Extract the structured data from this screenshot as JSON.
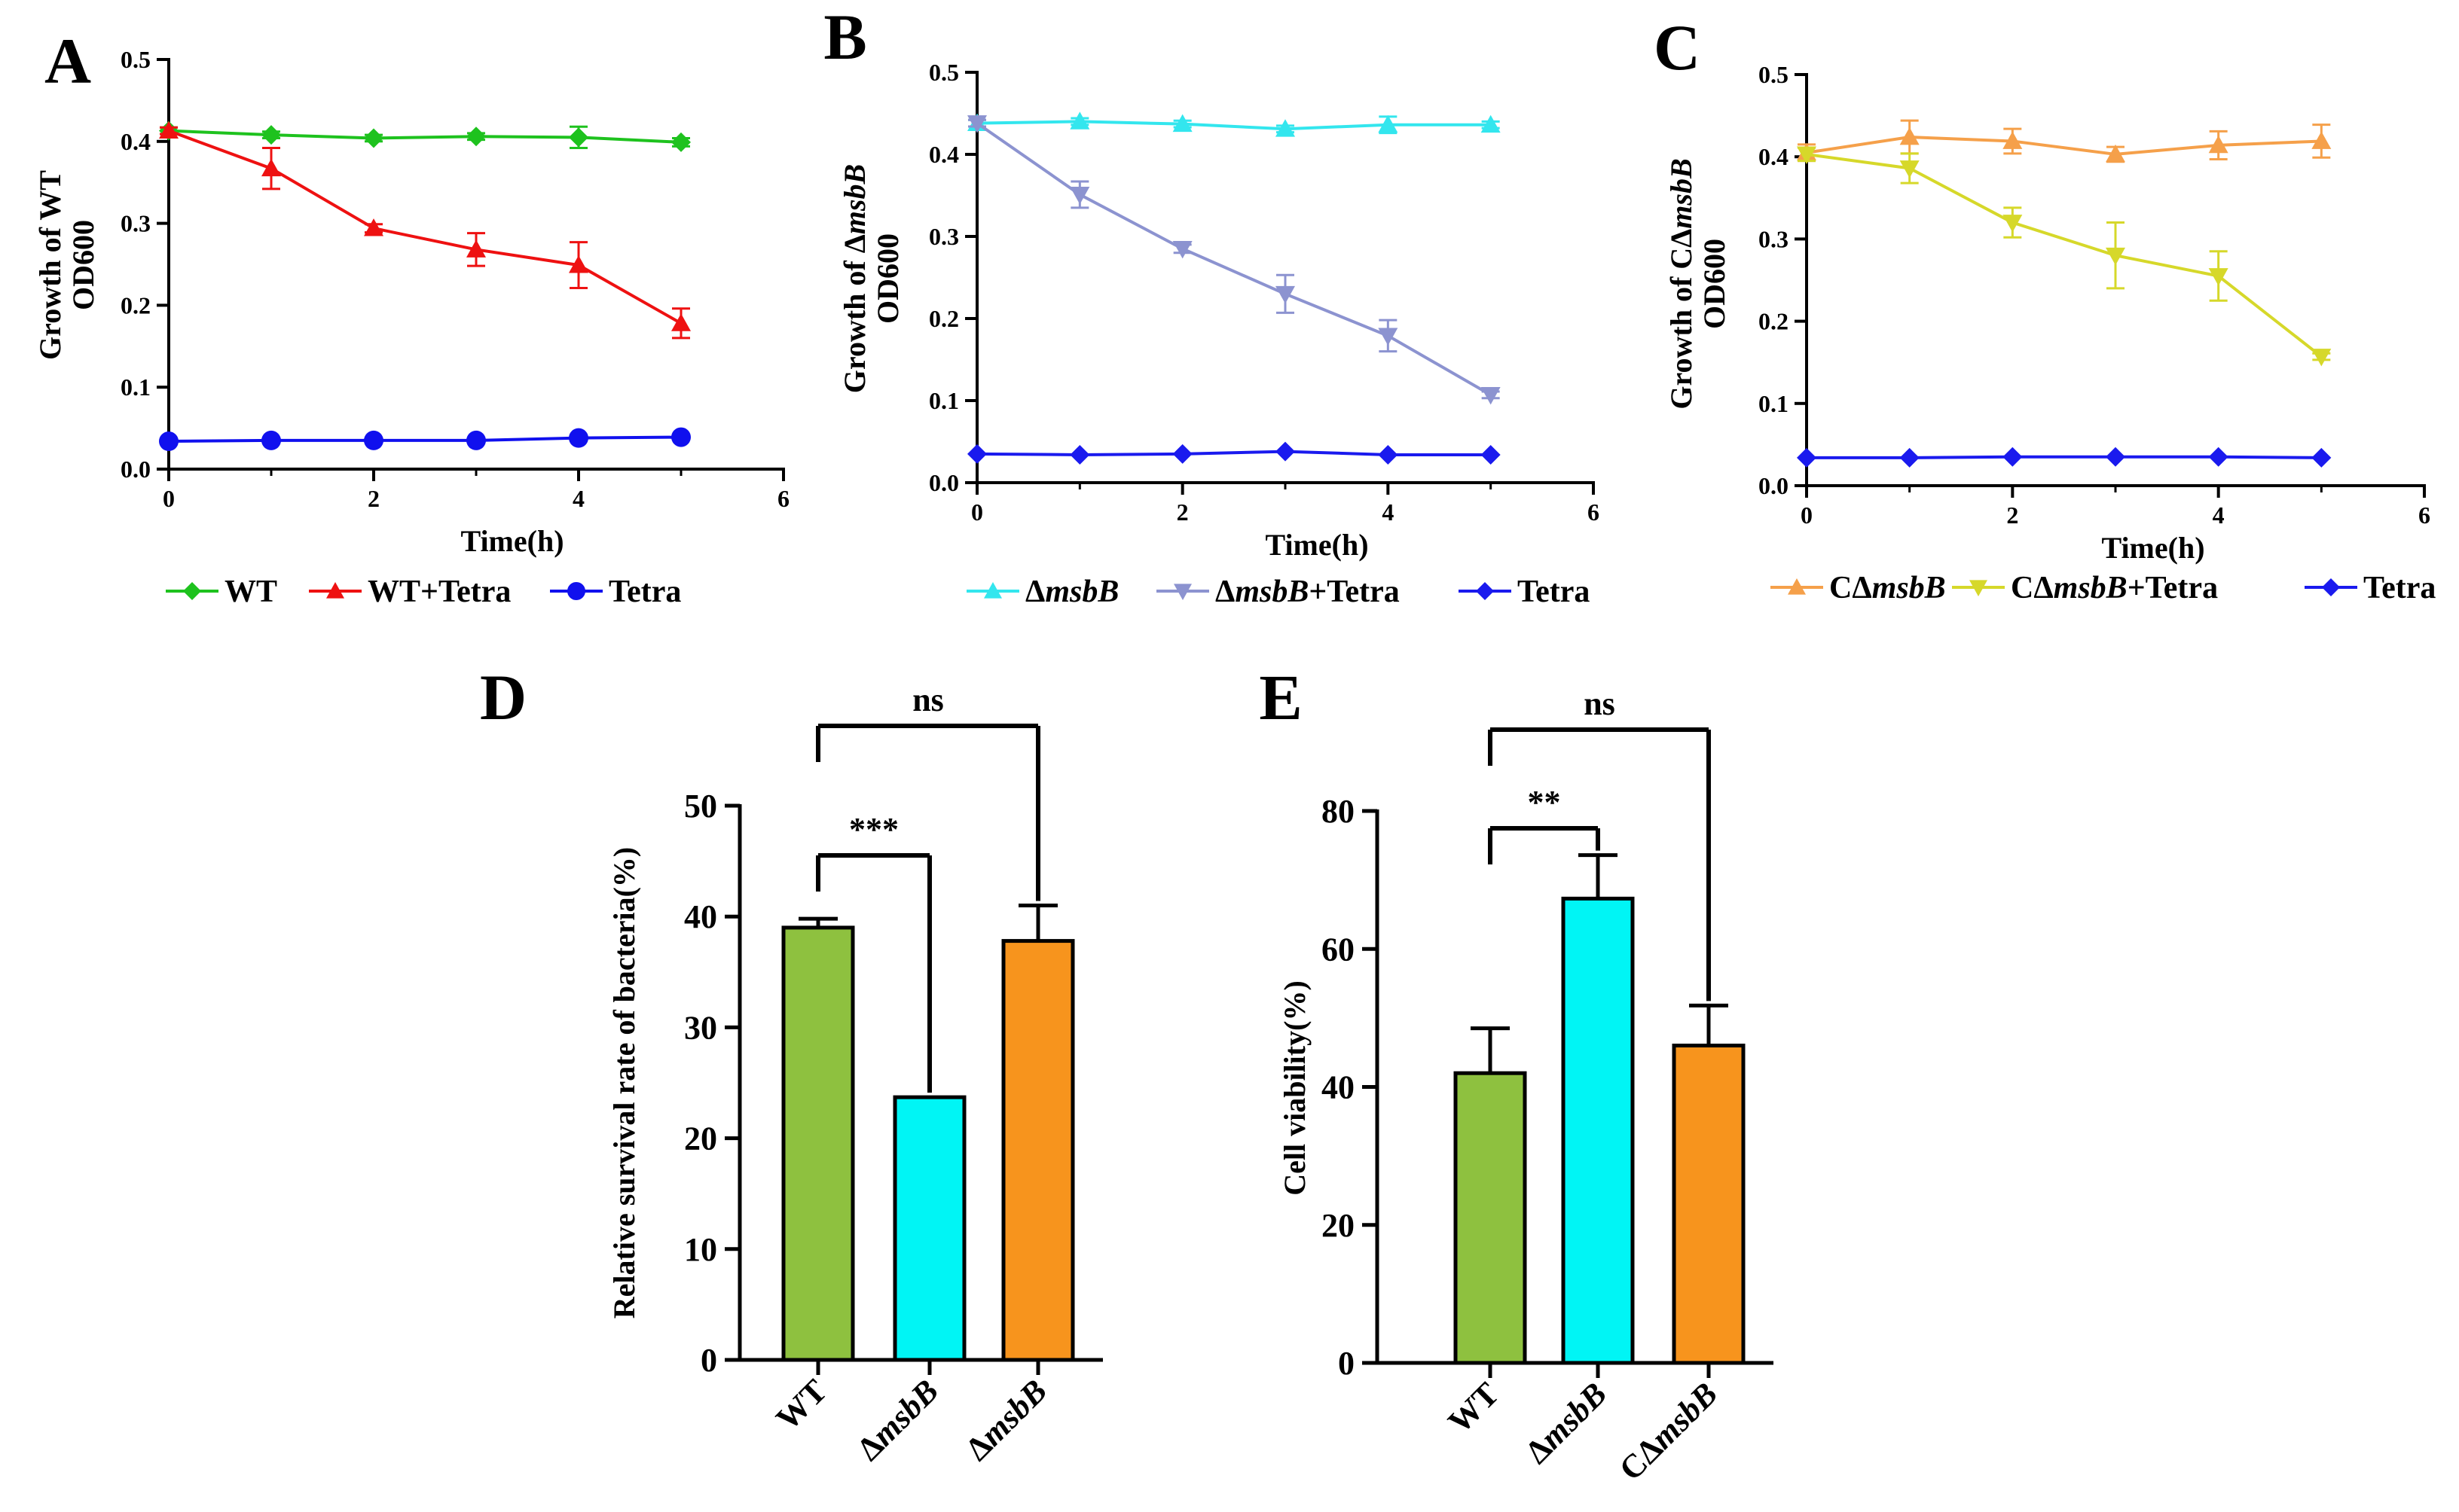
{
  "chart_data": [
    {
      "panel": "A",
      "type": "line",
      "ylabel_line1": "Growth of WT",
      "ylabel_line2": "OD600",
      "xlabel": "Time(h)",
      "xlim": [
        0,
        6
      ],
      "ylim": [
        0,
        0.5
      ],
      "xticks": [
        "0",
        "2",
        "4",
        "6"
      ],
      "yticks": [
        "0.0",
        "0.1",
        "0.2",
        "0.3",
        "0.4",
        "0.5"
      ],
      "x": [
        0,
        1,
        2,
        3,
        4,
        5
      ],
      "series": [
        {
          "name": "WT",
          "color": "#1ec21e",
          "marker": "diamond",
          "values": [
            0.413,
            0.408,
            0.404,
            0.406,
            0.405,
            0.399
          ],
          "errors": [
            0.004,
            0.004,
            0.004,
            0.004,
            0.013,
            0.005
          ]
        },
        {
          "name": "WT+Tetra",
          "color": "#ee1111",
          "marker": "triangle-up",
          "values": [
            0.413,
            0.367,
            0.294,
            0.268,
            0.249,
            0.178
          ],
          "errors": [
            0.004,
            0.025,
            0.005,
            0.02,
            0.028,
            0.018
          ]
        },
        {
          "name": "Tetra",
          "color": "#1010ee",
          "marker": "circle",
          "values": [
            0.034,
            0.035,
            0.035,
            0.035,
            0.038,
            0.039
          ],
          "errors": [
            0,
            0,
            0,
            0,
            0,
            0
          ]
        }
      ]
    },
    {
      "panel": "B",
      "type": "line",
      "ylabel_line1": "Growth of ΔmsbB",
      "ylabel_line2": "OD600",
      "xlabel": "Time(h)",
      "xlim": [
        0,
        6
      ],
      "ylim": [
        0,
        0.5
      ],
      "xticks": [
        "0",
        "2",
        "4",
        "6"
      ],
      "yticks": [
        "0.0",
        "0.1",
        "0.2",
        "0.3",
        "0.4",
        "0.5"
      ],
      "x": [
        0,
        1,
        2,
        3,
        4,
        5
      ],
      "series": [
        {
          "name": "ΔmsbB",
          "color": "#33e6ee",
          "marker": "triangle-up",
          "values": [
            0.438,
            0.44,
            0.437,
            0.431,
            0.436,
            0.436
          ],
          "errors": [
            0.004,
            0.004,
            0.004,
            0.004,
            0.01,
            0.004
          ]
        },
        {
          "name": "ΔmsbB+Tetra",
          "color": "#8c93d0",
          "marker": "triangle-down",
          "values": [
            0.438,
            0.351,
            0.285,
            0.23,
            0.179,
            0.107
          ],
          "errors": [
            0.004,
            0.016,
            0.005,
            0.023,
            0.019,
            0.004
          ]
        },
        {
          "name": "Tetra",
          "color": "#1a1aee",
          "marker": "diamond",
          "values": [
            0.035,
            0.034,
            0.035,
            0.038,
            0.034,
            0.034
          ],
          "errors": [
            0,
            0,
            0,
            0,
            0,
            0
          ]
        }
      ]
    },
    {
      "panel": "C",
      "type": "line",
      "ylabel_line1": "Growth of CΔmsbB",
      "ylabel_line2": "OD600",
      "xlabel": "Time(h)",
      "xlim": [
        0,
        6
      ],
      "ylim": [
        0,
        0.5
      ],
      "xticks": [
        "0",
        "2",
        "4",
        "6"
      ],
      "yticks": [
        "0.0",
        "0.1",
        "0.2",
        "0.3",
        "0.4",
        "0.5"
      ],
      "x": [
        0,
        1,
        2,
        3,
        4,
        5
      ],
      "series": [
        {
          "name": "CΔmsbB",
          "color": "#f5a04a",
          "marker": "triangle-up",
          "values": [
            0.405,
            0.424,
            0.419,
            0.403,
            0.414,
            0.419
          ],
          "errors": [
            0.01,
            0.02,
            0.015,
            0.009,
            0.017,
            0.02
          ]
        },
        {
          "name": "CΔmsbB+Tetra",
          "color": "#d6d82a",
          "marker": "triangle-down",
          "values": [
            0.403,
            0.386,
            0.32,
            0.28,
            0.255,
            0.157
          ],
          "errors": [
            0.008,
            0.018,
            0.018,
            0.04,
            0.03,
            0.004
          ]
        },
        {
          "name": "Tetra",
          "color": "#1a1aee",
          "marker": "diamond",
          "values": [
            0.034,
            0.034,
            0.035,
            0.035,
            0.035,
            0.034
          ],
          "errors": [
            0,
            0,
            0,
            0,
            0,
            0
          ]
        }
      ]
    },
    {
      "panel": "D",
      "type": "bar",
      "ylabel": "Relative survival rate of bacteria(%)",
      "ylim": [
        0,
        50
      ],
      "yticks": [
        "0",
        "10",
        "20",
        "30",
        "40",
        "50"
      ],
      "categories": [
        "WT",
        "ΔmsbB",
        "ΔmsbB"
      ],
      "values": [
        39,
        23.7,
        37.8
      ],
      "errors": [
        0.8,
        0,
        3.2
      ],
      "colors": [
        "#8ec13f",
        "#00f5f5",
        "#f7941d"
      ],
      "significance": [
        {
          "label": "***",
          "from": 0,
          "to": 1
        },
        {
          "label": "ns",
          "from": 0,
          "to": 2
        }
      ]
    },
    {
      "panel": "E",
      "type": "bar",
      "ylabel": "Cell viability(%)",
      "ylim": [
        0,
        80
      ],
      "yticks": [
        "0",
        "20",
        "40",
        "60",
        "80"
      ],
      "categories": [
        "WT",
        "ΔmsbB",
        "CΔmsbB"
      ],
      "values": [
        42,
        67.3,
        46
      ],
      "errors": [
        6.5,
        6.3,
        5.8
      ],
      "colors": [
        "#8ec13f",
        "#00f5f5",
        "#f7941d"
      ],
      "significance": [
        {
          "label": "**",
          "from": 0,
          "to": 1
        },
        {
          "label": "ns",
          "from": 0,
          "to": 2
        }
      ]
    }
  ]
}
